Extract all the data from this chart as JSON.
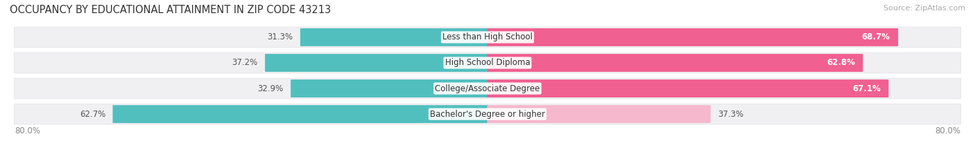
{
  "title": "OCCUPANCY BY EDUCATIONAL ATTAINMENT IN ZIP CODE 43213",
  "source": "Source: ZipAtlas.com",
  "categories": [
    "Less than High School",
    "High School Diploma",
    "College/Associate Degree",
    "Bachelor's Degree or higher"
  ],
  "owner_pct": [
    31.3,
    37.2,
    32.9,
    62.7
  ],
  "renter_pct": [
    68.7,
    62.8,
    67.1,
    37.3
  ],
  "owner_color": "#52bfbf",
  "renter_colors": [
    "#f06090",
    "#f06090",
    "#f06090",
    "#f5b8cc"
  ],
  "row_bg_color": "#f0f0f2",
  "row_border_color": "#e0e0e4",
  "axis_label_left": "80.0%",
  "axis_label_right": "80.0%",
  "title_fontsize": 10.5,
  "bar_label_fontsize": 8.5,
  "cat_label_fontsize": 8.5,
  "legend_fontsize": 8.5,
  "source_fontsize": 8,
  "owner_label_color": "#555555",
  "renter_label_color_strong": "#ffffff",
  "renter_label_color_light": "#555555",
  "center_label_bg": "#ffffff"
}
